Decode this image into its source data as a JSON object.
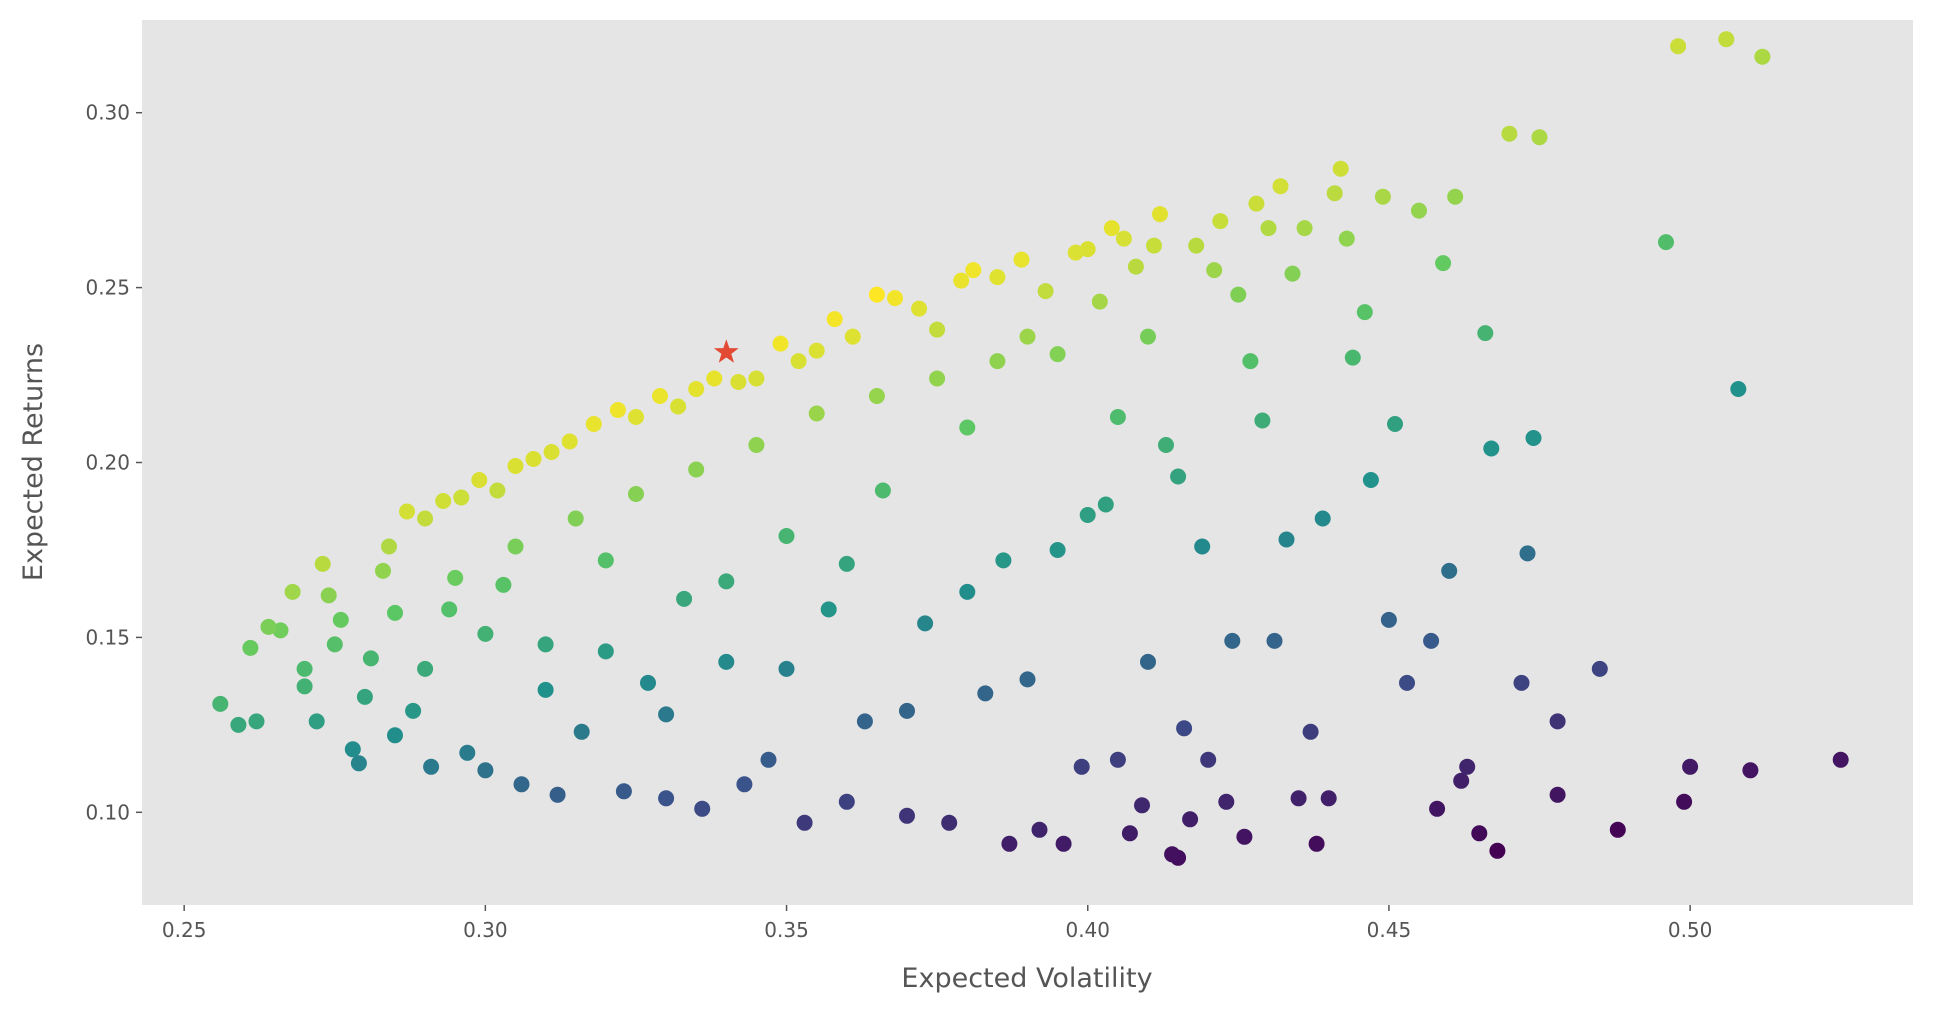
{
  "chart_data": {
    "type": "scatter",
    "title": "",
    "xlabel": "Expected Volatility",
    "ylabel": "Expected Returns",
    "xlim": [
      0.243,
      0.537
    ],
    "ylim": [
      0.0735,
      0.3265
    ],
    "xticks": [
      0.25,
      0.3,
      0.35,
      0.4,
      0.45,
      0.5
    ],
    "xtick_labels": [
      "0.25",
      "0.30",
      "0.35",
      "0.40",
      "0.45",
      "0.50"
    ],
    "yticks": [
      0.1,
      0.15,
      0.2,
      0.25,
      0.3
    ],
    "ytick_labels": [
      "0.10",
      "0.15",
      "0.20",
      "0.25",
      "0.30"
    ],
    "grid": false,
    "colormap": "viridis",
    "color_encodes": "Sharpe ratio",
    "background_color": "#e5e5e5",
    "highlight": {
      "x": 0.34,
      "y": 0.2315,
      "marker": "star",
      "color": "#e24a33"
    },
    "points": [
      [
        0.256,
        0.131
      ],
      [
        0.259,
        0.125
      ],
      [
        0.262,
        0.126
      ],
      [
        0.261,
        0.147
      ],
      [
        0.264,
        0.153
      ],
      [
        0.266,
        0.152
      ],
      [
        0.268,
        0.163
      ],
      [
        0.27,
        0.141
      ],
      [
        0.272,
        0.126
      ],
      [
        0.273,
        0.171
      ],
      [
        0.274,
        0.162
      ],
      [
        0.276,
        0.155
      ],
      [
        0.278,
        0.118
      ],
      [
        0.279,
        0.114
      ],
      [
        0.281,
        0.144
      ],
      [
        0.283,
        0.169
      ],
      [
        0.284,
        0.176
      ],
      [
        0.285,
        0.122
      ],
      [
        0.287,
        0.186
      ],
      [
        0.288,
        0.129
      ],
      [
        0.29,
        0.184
      ],
      [
        0.291,
        0.113
      ],
      [
        0.293,
        0.189
      ],
      [
        0.294,
        0.158
      ],
      [
        0.296,
        0.19
      ],
      [
        0.297,
        0.117
      ],
      [
        0.299,
        0.195
      ],
      [
        0.3,
        0.112
      ],
      [
        0.302,
        0.192
      ],
      [
        0.303,
        0.165
      ],
      [
        0.305,
        0.199
      ],
      [
        0.306,
        0.108
      ],
      [
        0.308,
        0.201
      ],
      [
        0.31,
        0.148
      ],
      [
        0.311,
        0.203
      ],
      [
        0.312,
        0.105
      ],
      [
        0.314,
        0.206
      ],
      [
        0.316,
        0.123
      ],
      [
        0.318,
        0.211
      ],
      [
        0.32,
        0.172
      ],
      [
        0.322,
        0.215
      ],
      [
        0.323,
        0.106
      ],
      [
        0.325,
        0.213
      ],
      [
        0.327,
        0.137
      ],
      [
        0.329,
        0.219
      ],
      [
        0.33,
        0.104
      ],
      [
        0.332,
        0.216
      ],
      [
        0.333,
        0.161
      ],
      [
        0.335,
        0.221
      ],
      [
        0.336,
        0.101
      ],
      [
        0.338,
        0.224
      ],
      [
        0.34,
        0.143
      ],
      [
        0.342,
        0.223
      ],
      [
        0.343,
        0.108
      ],
      [
        0.345,
        0.224
      ],
      [
        0.347,
        0.115
      ],
      [
        0.349,
        0.234
      ],
      [
        0.35,
        0.179
      ],
      [
        0.352,
        0.229
      ],
      [
        0.353,
        0.097
      ],
      [
        0.355,
        0.232
      ],
      [
        0.357,
        0.158
      ],
      [
        0.358,
        0.241
      ],
      [
        0.36,
        0.103
      ],
      [
        0.361,
        0.236
      ],
      [
        0.363,
        0.126
      ],
      [
        0.365,
        0.248
      ],
      [
        0.366,
        0.192
      ],
      [
        0.368,
        0.247
      ],
      [
        0.37,
        0.099
      ],
      [
        0.372,
        0.244
      ],
      [
        0.373,
        0.154
      ],
      [
        0.375,
        0.238
      ],
      [
        0.377,
        0.097
      ],
      [
        0.379,
        0.252
      ],
      [
        0.38,
        0.21
      ],
      [
        0.381,
        0.255
      ],
      [
        0.383,
        0.134
      ],
      [
        0.385,
        0.253
      ],
      [
        0.386,
        0.172
      ],
      [
        0.387,
        0.091
      ],
      [
        0.389,
        0.258
      ],
      [
        0.39,
        0.236
      ],
      [
        0.392,
        0.095
      ],
      [
        0.393,
        0.249
      ],
      [
        0.395,
        0.175
      ],
      [
        0.396,
        0.091
      ],
      [
        0.398,
        0.26
      ],
      [
        0.399,
        0.113
      ],
      [
        0.4,
        0.261
      ],
      [
        0.402,
        0.246
      ],
      [
        0.403,
        0.188
      ],
      [
        0.404,
        0.267
      ],
      [
        0.405,
        0.115
      ],
      [
        0.406,
        0.264
      ],
      [
        0.407,
        0.094
      ],
      [
        0.408,
        0.256
      ],
      [
        0.409,
        0.102
      ],
      [
        0.41,
        0.236
      ],
      [
        0.411,
        0.262
      ],
      [
        0.412,
        0.271
      ],
      [
        0.413,
        0.205
      ],
      [
        0.414,
        0.088
      ],
      [
        0.415,
        0.087
      ],
      [
        0.416,
        0.124
      ],
      [
        0.417,
        0.098
      ],
      [
        0.418,
        0.262
      ],
      [
        0.419,
        0.176
      ],
      [
        0.42,
        0.115
      ],
      [
        0.421,
        0.255
      ],
      [
        0.422,
        0.269
      ],
      [
        0.423,
        0.103
      ],
      [
        0.424,
        0.149
      ],
      [
        0.425,
        0.248
      ],
      [
        0.426,
        0.093
      ],
      [
        0.427,
        0.229
      ],
      [
        0.428,
        0.274
      ],
      [
        0.429,
        0.212
      ],
      [
        0.43,
        0.267
      ],
      [
        0.431,
        0.149
      ],
      [
        0.432,
        0.279
      ],
      [
        0.433,
        0.178
      ],
      [
        0.434,
        0.254
      ],
      [
        0.435,
        0.104
      ],
      [
        0.436,
        0.267
      ],
      [
        0.437,
        0.123
      ],
      [
        0.438,
        0.091
      ],
      [
        0.439,
        0.184
      ],
      [
        0.44,
        0.104
      ],
      [
        0.441,
        0.277
      ],
      [
        0.442,
        0.284
      ],
      [
        0.443,
        0.264
      ],
      [
        0.444,
        0.23
      ],
      [
        0.446,
        0.243
      ],
      [
        0.447,
        0.195
      ],
      [
        0.449,
        0.276
      ],
      [
        0.45,
        0.155
      ],
      [
        0.451,
        0.211
      ],
      [
        0.453,
        0.137
      ],
      [
        0.455,
        0.272
      ],
      [
        0.457,
        0.149
      ],
      [
        0.458,
        0.101
      ],
      [
        0.459,
        0.257
      ],
      [
        0.46,
        0.169
      ],
      [
        0.461,
        0.276
      ],
      [
        0.462,
        0.109
      ],
      [
        0.463,
        0.113
      ],
      [
        0.465,
        0.094
      ],
      [
        0.466,
        0.237
      ],
      [
        0.467,
        0.204
      ],
      [
        0.468,
        0.089
      ],
      [
        0.47,
        0.294
      ],
      [
        0.472,
        0.137
      ],
      [
        0.473,
        0.174
      ],
      [
        0.474,
        0.207
      ],
      [
        0.475,
        0.293
      ],
      [
        0.478,
        0.126
      ],
      [
        0.478,
        0.105
      ],
      [
        0.485,
        0.141
      ],
      [
        0.488,
        0.095
      ],
      [
        0.496,
        0.263
      ],
      [
        0.498,
        0.319
      ],
      [
        0.499,
        0.103
      ],
      [
        0.5,
        0.113
      ],
      [
        0.506,
        0.321
      ],
      [
        0.508,
        0.221
      ],
      [
        0.51,
        0.112
      ],
      [
        0.512,
        0.316
      ],
      [
        0.525,
        0.115
      ],
      [
        0.27,
        0.136
      ],
      [
        0.275,
        0.148
      ],
      [
        0.28,
        0.133
      ],
      [
        0.285,
        0.157
      ],
      [
        0.29,
        0.141
      ],
      [
        0.295,
        0.167
      ],
      [
        0.3,
        0.151
      ],
      [
        0.305,
        0.176
      ],
      [
        0.31,
        0.135
      ],
      [
        0.315,
        0.184
      ],
      [
        0.32,
        0.146
      ],
      [
        0.325,
        0.191
      ],
      [
        0.33,
        0.128
      ],
      [
        0.335,
        0.198
      ],
      [
        0.34,
        0.166
      ],
      [
        0.345,
        0.205
      ],
      [
        0.35,
        0.141
      ],
      [
        0.355,
        0.214
      ],
      [
        0.36,
        0.171
      ],
      [
        0.365,
        0.219
      ],
      [
        0.37,
        0.129
      ],
      [
        0.375,
        0.224
      ],
      [
        0.38,
        0.163
      ],
      [
        0.385,
        0.229
      ],
      [
        0.39,
        0.138
      ],
      [
        0.395,
        0.231
      ],
      [
        0.4,
        0.185
      ],
      [
        0.405,
        0.213
      ],
      [
        0.41,
        0.143
      ],
      [
        0.415,
        0.196
      ]
    ]
  }
}
